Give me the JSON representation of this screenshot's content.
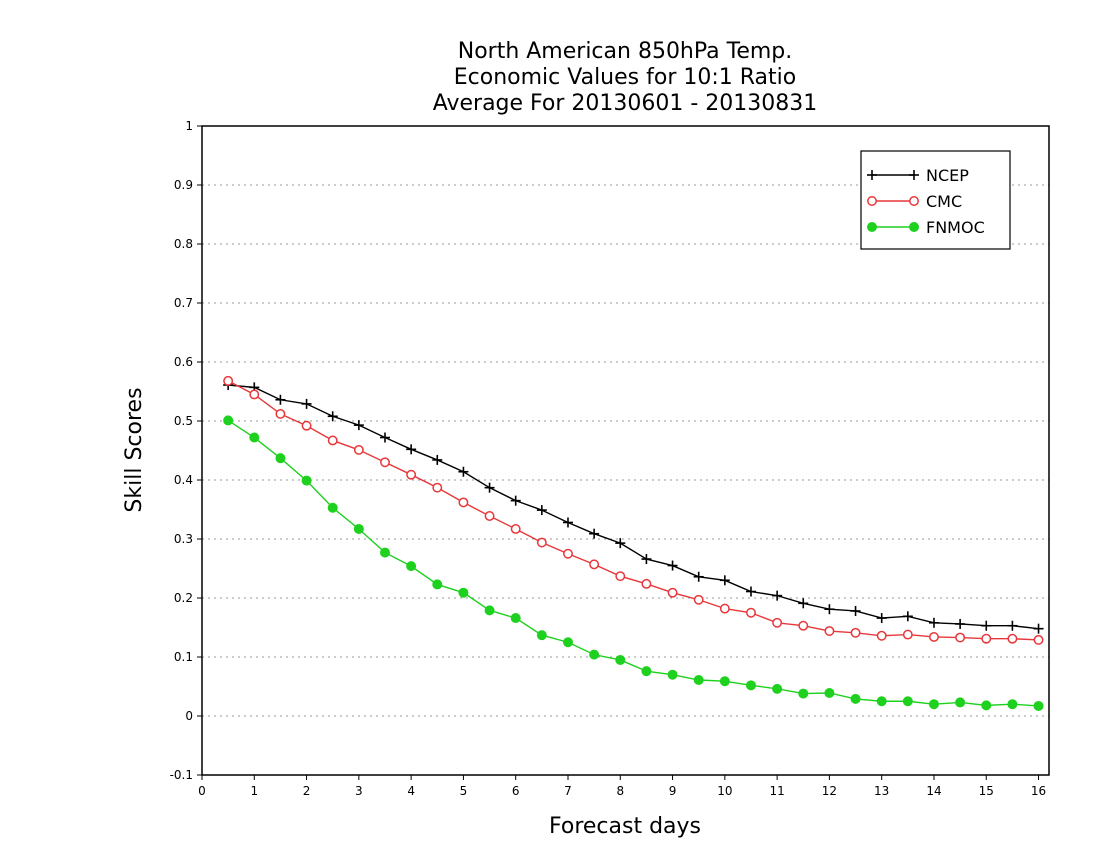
{
  "chart_data": {
    "type": "line",
    "title": [
      "North American 850hPa Temp.",
      "Economic Values for 10:1 Ratio",
      "Average For 20130601 - 20130831"
    ],
    "xlabel": "Forecast days",
    "ylabel": "Skill Scores",
    "xlim": [
      0,
      16.2
    ],
    "ylim": [
      -0.1,
      1
    ],
    "xticks": [
      0,
      1,
      2,
      3,
      4,
      5,
      6,
      7,
      8,
      9,
      10,
      11,
      12,
      13,
      14,
      15,
      16
    ],
    "yticks": [
      -0.1,
      0,
      0.1,
      0.2,
      0.3,
      0.4,
      0.5,
      0.6,
      0.7,
      0.8,
      0.9,
      1
    ],
    "ytick_labels": [
      "-0.1",
      "0",
      "0.1",
      "0.2",
      "0.3",
      "0.4",
      "0.5",
      "0.6",
      "0.7",
      "0.8",
      "0.9",
      "1"
    ],
    "grid": "dotted-horizontal",
    "legend_position": "top-right",
    "x": [
      0.5,
      1,
      1.5,
      2,
      2.5,
      3,
      3.5,
      4,
      4.5,
      5,
      5.5,
      6,
      6.5,
      7,
      7.5,
      8,
      8.5,
      9,
      9.5,
      10,
      10.5,
      11,
      11.5,
      12,
      12.5,
      13,
      13.5,
      14,
      14.5,
      15,
      15.5,
      16
    ],
    "series": [
      {
        "name": "NCEP",
        "color": "#000000",
        "marker": "plus",
        "values": [
          0.561,
          0.557,
          0.536,
          0.529,
          0.508,
          0.493,
          0.472,
          0.452,
          0.434,
          0.414,
          0.387,
          0.365,
          0.349,
          0.328,
          0.309,
          0.293,
          0.266,
          0.255,
          0.236,
          0.23,
          0.211,
          0.204,
          0.191,
          0.181,
          0.178,
          0.166,
          0.169,
          0.158,
          0.156,
          0.153,
          0.153,
          0.148
        ]
      },
      {
        "name": "CMC",
        "color": "#e8373a",
        "marker": "open-circle",
        "values": [
          0.568,
          0.545,
          0.512,
          0.492,
          0.467,
          0.451,
          0.43,
          0.409,
          0.387,
          0.362,
          0.339,
          0.317,
          0.294,
          0.275,
          0.257,
          0.237,
          0.224,
          0.209,
          0.197,
          0.182,
          0.175,
          0.158,
          0.153,
          0.144,
          0.141,
          0.136,
          0.138,
          0.134,
          0.133,
          0.131,
          0.131,
          0.129
        ]
      },
      {
        "name": "FNMOC",
        "color": "#1fd11f",
        "marker": "filled-circle",
        "values": [
          0.501,
          0.472,
          0.437,
          0.399,
          0.353,
          0.317,
          0.277,
          0.254,
          0.223,
          0.209,
          0.179,
          0.166,
          0.137,
          0.125,
          0.104,
          0.095,
          0.076,
          0.07,
          0.061,
          0.059,
          0.052,
          0.046,
          0.038,
          0.039,
          0.029,
          0.025,
          0.025,
          0.02,
          0.023,
          0.018,
          0.02,
          0.017
        ]
      }
    ]
  }
}
